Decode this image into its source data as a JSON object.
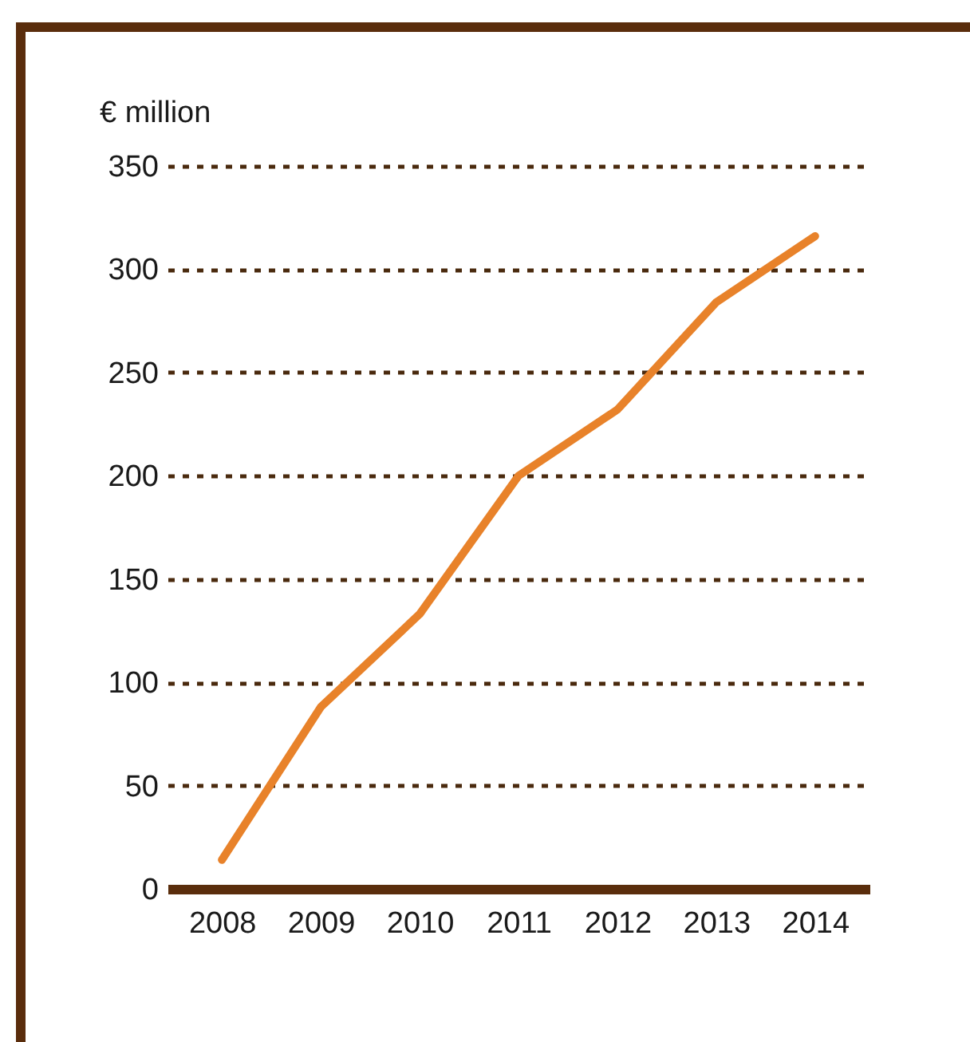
{
  "chart_data": {
    "type": "line",
    "ylabel": "€ million",
    "categories": [
      "2008",
      "2009",
      "2010",
      "2011",
      "2012",
      "2013",
      "2014"
    ],
    "series": [
      {
        "color": "#e8822a",
        "values": [
          14,
          88,
          133,
          200,
          232,
          284,
          316
        ]
      }
    ],
    "ylim": [
      0,
      350
    ],
    "yticks": [
      0,
      50,
      100,
      150,
      200,
      250,
      300,
      350
    ],
    "grid": "y",
    "marker": "none",
    "line_style": "solid"
  }
}
